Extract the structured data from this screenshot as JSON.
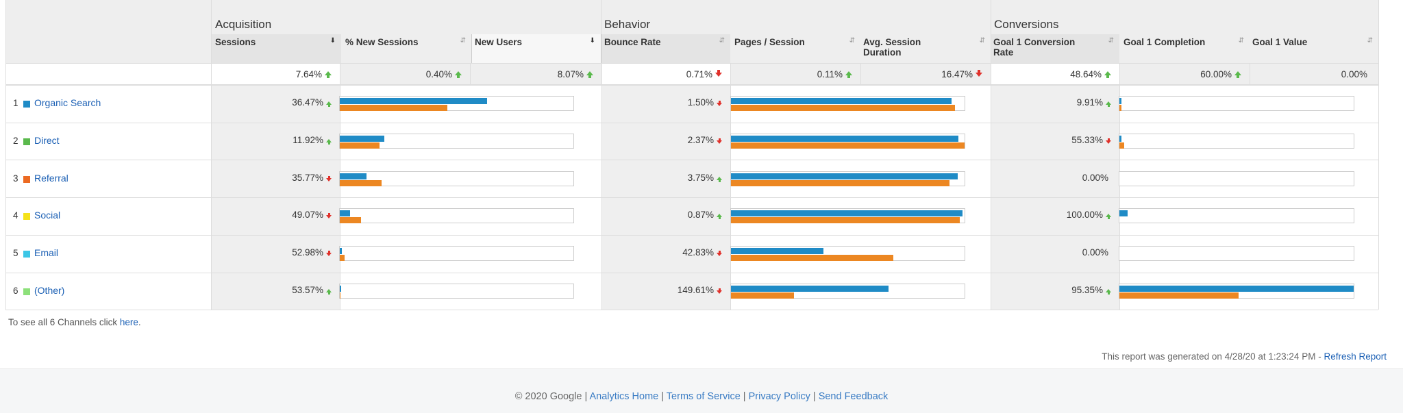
{
  "groups": {
    "acquisition": "Acquisition",
    "behavior": "Behavior",
    "conversions": "Conversions"
  },
  "columns": {
    "sessions": "Sessions",
    "new_sessions": "% New Sessions",
    "new_users": "New Users",
    "bounce_rate": "Bounce Rate",
    "pages_session": "Pages / Session",
    "avg_duration": "Avg. Session Duration",
    "goal_conv_rate": "Goal 1 Conversion Rate",
    "goal_completion": "Goal 1 Completion",
    "goal_value": "Goal 1 Value"
  },
  "totals": {
    "sessions": "7.64%",
    "new_sessions": "0.40%",
    "new_users": "8.07%",
    "bounce_rate": "0.71%",
    "pages_session": "0.11%",
    "avg_duration": "16.47%",
    "goal_conv_rate": "48.64%",
    "goal_completion": "60.00%",
    "goal_value": "0.00%"
  },
  "totals_dirs": {
    "sessions": "up",
    "new_sessions": "up",
    "new_users": "up",
    "bounce_rate": "down",
    "pages_session": "up",
    "avg_duration": "down",
    "goal_conv_rate": "up",
    "goal_completion": "up",
    "goal_value": "none"
  },
  "rows": [
    {
      "num": "1",
      "label": "Organic Search",
      "color": "#1f8bc6",
      "acq_pct": "36.47%",
      "acq_dir": "up",
      "acq_bars": [
        0.63,
        0.46
      ],
      "beh_pct": "1.50%",
      "beh_dir": "down",
      "beh_bars": [
        0.945,
        0.96
      ],
      "conv_pct": "9.91%",
      "conv_dir": "up",
      "conv_bars": [
        0.008,
        0.008
      ]
    },
    {
      "num": "2",
      "label": "Direct",
      "color": "#5ab94c",
      "acq_pct": "11.92%",
      "acq_dir": "up",
      "acq_bars": [
        0.19,
        0.17
      ],
      "beh_pct": "2.37%",
      "beh_dir": "down",
      "beh_bars": [
        0.975,
        1.0
      ],
      "conv_pct": "55.33%",
      "conv_dir": "down",
      "conv_bars": [
        0.008,
        0.02
      ]
    },
    {
      "num": "3",
      "label": "Referral",
      "color": "#ec6a22",
      "acq_pct": "35.77%",
      "acq_dir": "down",
      "acq_bars": [
        0.115,
        0.18
      ],
      "beh_pct": "3.75%",
      "beh_dir": "up",
      "beh_bars": [
        0.97,
        0.935
      ],
      "conv_pct": "0.00%",
      "conv_dir": "none",
      "conv_bars": [
        0,
        0
      ]
    },
    {
      "num": "4",
      "label": "Social",
      "color": "#f5e21a",
      "acq_pct": "49.07%",
      "acq_dir": "down",
      "acq_bars": [
        0.045,
        0.09
      ],
      "beh_pct": "0.87%",
      "beh_dir": "up",
      "beh_bars": [
        0.99,
        0.98
      ],
      "conv_pct": "100.00%",
      "conv_dir": "up",
      "conv_bars": [
        0.035,
        0
      ]
    },
    {
      "num": "5",
      "label": "Email",
      "color": "#3cc6e6",
      "acq_pct": "52.98%",
      "acq_dir": "down",
      "acq_bars": [
        0.008,
        0.02
      ],
      "beh_pct": "42.83%",
      "beh_dir": "down",
      "beh_bars": [
        0.395,
        0.695
      ],
      "conv_pct": "0.00%",
      "conv_dir": "none",
      "conv_bars": [
        0,
        0
      ]
    },
    {
      "num": "6",
      "label": "(Other)",
      "color": "#8de07a",
      "acq_pct": "53.57%",
      "acq_dir": "up",
      "acq_bars": [
        0.005,
        0.003
      ],
      "beh_pct": "149.61%",
      "beh_dir": "down",
      "beh_bars": [
        0.675,
        0.27
      ],
      "conv_pct": "95.35%",
      "conv_dir": "up",
      "conv_bars": [
        1.0,
        0.51
      ]
    }
  ],
  "see_all": {
    "prefix": "To see all 6 Channels click ",
    "link": "here",
    "suffix": "."
  },
  "generated": {
    "text": "This report was generated on 4/28/20 at 1:23:24 PM - ",
    "link": "Refresh Report"
  },
  "footer": {
    "copyright": "© 2020 Google | ",
    "links": [
      "Analytics Home",
      "Terms of Service",
      "Privacy Policy",
      "Send Feedback"
    ],
    "sep": " | "
  },
  "colors": {
    "blue": "#1f8bc6",
    "orange": "#ec8722",
    "up": "#5ab94c",
    "down": "#e0312b"
  }
}
